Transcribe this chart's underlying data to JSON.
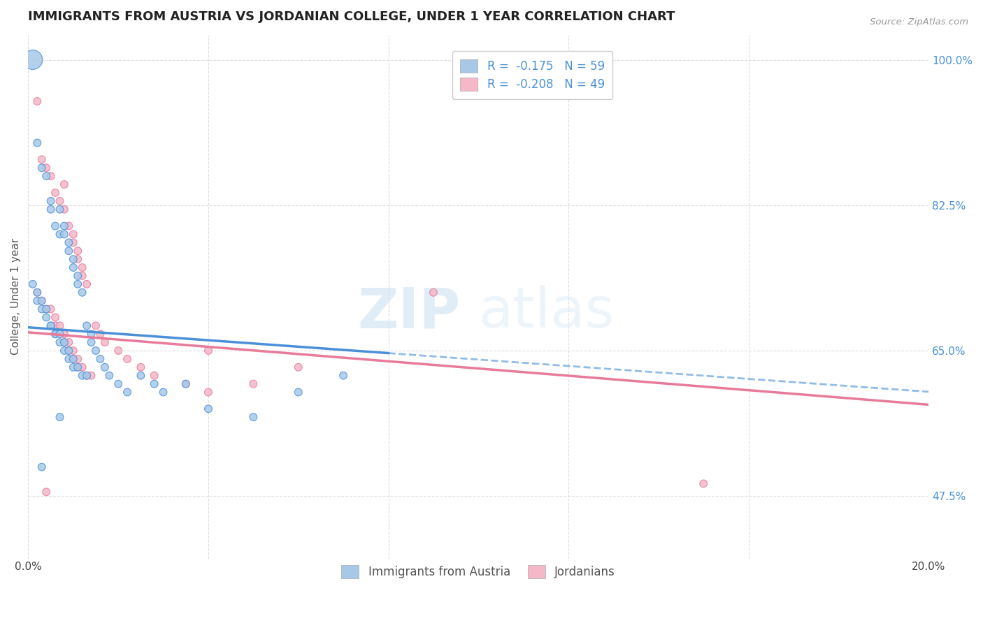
{
  "title": "IMMIGRANTS FROM AUSTRIA VS JORDANIAN COLLEGE, UNDER 1 YEAR CORRELATION CHART",
  "source": "Source: ZipAtlas.com",
  "ylabel": "College, Under 1 year",
  "x_min": 0.0,
  "x_max": 0.2,
  "y_min": 0.4,
  "y_max": 1.03,
  "x_ticks": [
    0.0,
    0.04,
    0.08,
    0.12,
    0.16,
    0.2
  ],
  "x_tick_labels": [
    "0.0%",
    "",
    "",
    "",
    "",
    "20.0%"
  ],
  "y_ticks": [
    0.475,
    0.65,
    0.825,
    1.0
  ],
  "y_tick_labels": [
    "47.5%",
    "65.0%",
    "82.5%",
    "100.0%"
  ],
  "legend_entries": [
    {
      "label": "R =  -0.175   N = 59",
      "color": "#a8c8e8"
    },
    {
      "label": "R =  -0.208   N = 49",
      "color": "#f4b8c8"
    }
  ],
  "legend_bottom": [
    {
      "label": "Immigrants from Austria",
      "color": "#a8c8e8"
    },
    {
      "label": "Jordanians",
      "color": "#f4b8c8"
    }
  ],
  "austria_color": "#a8c8e8",
  "jordan_color": "#f4b8c8",
  "trendline_austria_color": "#4a90d9",
  "trendline_jordan_color": "#e87a9a",
  "austria_scatter": [
    [
      0.001,
      1.0
    ],
    [
      0.002,
      0.9
    ],
    [
      0.003,
      0.87
    ],
    [
      0.004,
      0.86
    ],
    [
      0.005,
      0.83
    ],
    [
      0.005,
      0.82
    ],
    [
      0.006,
      0.8
    ],
    [
      0.007,
      0.82
    ],
    [
      0.007,
      0.79
    ],
    [
      0.008,
      0.8
    ],
    [
      0.008,
      0.79
    ],
    [
      0.009,
      0.78
    ],
    [
      0.009,
      0.77
    ],
    [
      0.01,
      0.76
    ],
    [
      0.01,
      0.75
    ],
    [
      0.011,
      0.74
    ],
    [
      0.011,
      0.73
    ],
    [
      0.012,
      0.72
    ],
    [
      0.001,
      0.73
    ],
    [
      0.002,
      0.72
    ],
    [
      0.002,
      0.71
    ],
    [
      0.003,
      0.71
    ],
    [
      0.003,
      0.7
    ],
    [
      0.004,
      0.7
    ],
    [
      0.004,
      0.69
    ],
    [
      0.005,
      0.68
    ],
    [
      0.005,
      0.68
    ],
    [
      0.006,
      0.67
    ],
    [
      0.006,
      0.67
    ],
    [
      0.007,
      0.67
    ],
    [
      0.007,
      0.66
    ],
    [
      0.008,
      0.66
    ],
    [
      0.008,
      0.65
    ],
    [
      0.009,
      0.65
    ],
    [
      0.009,
      0.64
    ],
    [
      0.01,
      0.64
    ],
    [
      0.01,
      0.63
    ],
    [
      0.011,
      0.63
    ],
    [
      0.012,
      0.62
    ],
    [
      0.013,
      0.62
    ],
    [
      0.013,
      0.68
    ],
    [
      0.014,
      0.67
    ],
    [
      0.014,
      0.66
    ],
    [
      0.015,
      0.65
    ],
    [
      0.016,
      0.64
    ],
    [
      0.017,
      0.63
    ],
    [
      0.018,
      0.62
    ],
    [
      0.02,
      0.61
    ],
    [
      0.022,
      0.6
    ],
    [
      0.025,
      0.62
    ],
    [
      0.028,
      0.61
    ],
    [
      0.03,
      0.6
    ],
    [
      0.035,
      0.61
    ],
    [
      0.04,
      0.58
    ],
    [
      0.05,
      0.57
    ],
    [
      0.06,
      0.6
    ],
    [
      0.07,
      0.62
    ],
    [
      0.003,
      0.51
    ],
    [
      0.007,
      0.57
    ]
  ],
  "austria_sizes": [
    400,
    60,
    60,
    60,
    60,
    60,
    60,
    60,
    60,
    60,
    60,
    60,
    60,
    60,
    60,
    60,
    60,
    60,
    60,
    60,
    60,
    60,
    60,
    60,
    60,
    60,
    60,
    60,
    60,
    60,
    60,
    60,
    60,
    60,
    60,
    60,
    60,
    60,
    60,
    60,
    60,
    60,
    60,
    60,
    60,
    60,
    60,
    60,
    60,
    60,
    60,
    60,
    60,
    60,
    60,
    60,
    60,
    60,
    60
  ],
  "jordan_scatter": [
    [
      0.002,
      0.95
    ],
    [
      0.003,
      0.88
    ],
    [
      0.004,
      0.87
    ],
    [
      0.005,
      0.86
    ],
    [
      0.006,
      0.84
    ],
    [
      0.007,
      0.83
    ],
    [
      0.008,
      0.85
    ],
    [
      0.008,
      0.82
    ],
    [
      0.009,
      0.8
    ],
    [
      0.01,
      0.78
    ],
    [
      0.01,
      0.79
    ],
    [
      0.011,
      0.77
    ],
    [
      0.011,
      0.76
    ],
    [
      0.012,
      0.75
    ],
    [
      0.012,
      0.74
    ],
    [
      0.013,
      0.73
    ],
    [
      0.002,
      0.72
    ],
    [
      0.003,
      0.71
    ],
    [
      0.004,
      0.7
    ],
    [
      0.005,
      0.7
    ],
    [
      0.006,
      0.69
    ],
    [
      0.006,
      0.68
    ],
    [
      0.007,
      0.68
    ],
    [
      0.008,
      0.67
    ],
    [
      0.008,
      0.66
    ],
    [
      0.009,
      0.66
    ],
    [
      0.009,
      0.65
    ],
    [
      0.01,
      0.65
    ],
    [
      0.01,
      0.64
    ],
    [
      0.011,
      0.64
    ],
    [
      0.011,
      0.63
    ],
    [
      0.012,
      0.63
    ],
    [
      0.013,
      0.62
    ],
    [
      0.014,
      0.62
    ],
    [
      0.015,
      0.68
    ],
    [
      0.016,
      0.67
    ],
    [
      0.017,
      0.66
    ],
    [
      0.02,
      0.65
    ],
    [
      0.022,
      0.64
    ],
    [
      0.025,
      0.63
    ],
    [
      0.028,
      0.62
    ],
    [
      0.035,
      0.61
    ],
    [
      0.04,
      0.65
    ],
    [
      0.05,
      0.61
    ],
    [
      0.06,
      0.63
    ],
    [
      0.09,
      0.72
    ],
    [
      0.15,
      0.49
    ],
    [
      0.04,
      0.6
    ],
    [
      0.004,
      0.48
    ]
  ],
  "jordan_sizes": [
    60,
    60,
    60,
    60,
    60,
    60,
    60,
    60,
    60,
    60,
    60,
    60,
    60,
    60,
    60,
    60,
    60,
    60,
    60,
    60,
    60,
    60,
    60,
    60,
    60,
    60,
    60,
    60,
    60,
    60,
    60,
    60,
    60,
    60,
    60,
    60,
    60,
    60,
    60,
    60,
    60,
    60,
    60,
    60,
    60,
    60,
    60,
    60,
    60
  ],
  "watermark_zip": "ZIP",
  "watermark_atlas": "atlas",
  "bg_color": "#ffffff",
  "grid_color": "#dddddd",
  "right_axis_color": "#4a90d9",
  "title_fontsize": 13,
  "axis_label_fontsize": 11
}
